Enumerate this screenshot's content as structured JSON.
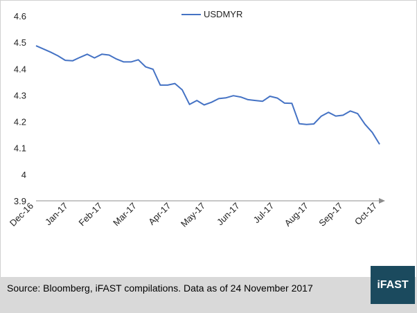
{
  "chart_data": {
    "type": "line",
    "title": "",
    "xlabel": "",
    "ylabel": "",
    "ylim": [
      3.9,
      4.6
    ],
    "y_ticks": [
      "3.9",
      "4",
      "4.1",
      "4.2",
      "4.3",
      "4.4",
      "4.5",
      "4.6"
    ],
    "x_ticks": [
      "Dec-16",
      "Jan-17",
      "Feb-17",
      "Mar-17",
      "Apr-17",
      "May-17",
      "Jun-17",
      "Jul-17",
      "Aug-17",
      "Sep-17",
      "Oct-17"
    ],
    "legend_position": "top-center",
    "grid": false,
    "series": [
      {
        "name": "USDMYR",
        "color": "#4472c4",
        "values": [
          4.487,
          4.475,
          4.463,
          4.449,
          4.432,
          4.43,
          4.443,
          4.455,
          4.441,
          4.455,
          4.452,
          4.437,
          4.426,
          4.426,
          4.434,
          4.407,
          4.398,
          4.338,
          4.338,
          4.344,
          4.32,
          4.265,
          4.28,
          4.263,
          4.273,
          4.287,
          4.29,
          4.298,
          4.293,
          4.283,
          4.28,
          4.277,
          4.296,
          4.289,
          4.27,
          4.269,
          4.192,
          4.189,
          4.191,
          4.22,
          4.235,
          4.221,
          4.224,
          4.24,
          4.23,
          4.19,
          4.159,
          4.114
        ]
      }
    ]
  },
  "footer": {
    "source": "Source: Bloomberg, iFAST compilations. Data as of 24 November 2017",
    "logo": "iFAST"
  }
}
